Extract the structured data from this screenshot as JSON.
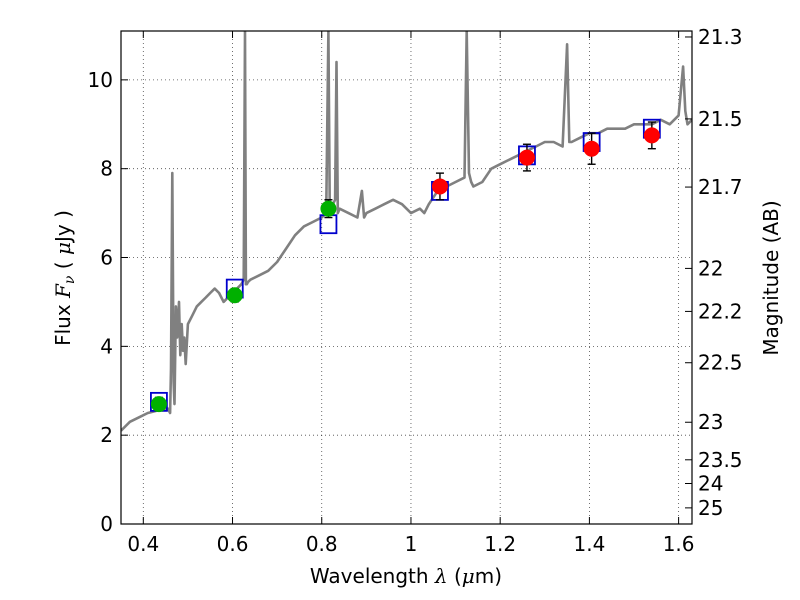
{
  "chart_data": {
    "type": "line",
    "xlabel": "Wavelength  λ (μm)",
    "xlabel_parts": [
      "Wavelength  ",
      "λ",
      " (",
      "μ",
      "m)"
    ],
    "ylabel_parts": [
      "Flux  ",
      "F",
      "ν",
      "  ( ",
      "μ",
      "Jy )"
    ],
    "y2label": "Magnitude (AB)",
    "xlim": [
      0.35,
      1.63
    ],
    "ylim": [
      0,
      11.1
    ],
    "grid": true,
    "x_ticks": [
      0.4,
      0.6,
      0.8,
      1.0,
      1.2,
      1.4,
      1.6
    ],
    "x_tick_labels": [
      "0.4",
      "0.6",
      "0.8",
      "1",
      "1.2",
      "1.4",
      "1.6"
    ],
    "y_ticks": [
      0,
      2,
      4,
      6,
      8,
      10
    ],
    "y_tick_labels": [
      "0",
      "2",
      "4",
      "6",
      "8",
      "10"
    ],
    "mag_ticks": [
      21.3,
      21.5,
      21.7,
      22,
      22.2,
      22.5,
      23,
      23.5,
      24,
      25
    ],
    "mag_tick_labels": [
      "21.3",
      "21.5",
      "21.7",
      "22",
      "22.2",
      "22.5",
      "23",
      "23.5",
      "24",
      "25"
    ],
    "model_spectrum": {
      "name": "model SED",
      "color": "#808080",
      "x": [
        0.35,
        0.37,
        0.39,
        0.41,
        0.43,
        0.45,
        0.455,
        0.46,
        0.462,
        0.465,
        0.468,
        0.47,
        0.473,
        0.476,
        0.48,
        0.483,
        0.486,
        0.489,
        0.492,
        0.495,
        0.5,
        0.51,
        0.52,
        0.53,
        0.54,
        0.55,
        0.56,
        0.57,
        0.58,
        0.6,
        0.61,
        0.615,
        0.62,
        0.625,
        0.628,
        0.63,
        0.632,
        0.635,
        0.64,
        0.66,
        0.68,
        0.7,
        0.72,
        0.74,
        0.76,
        0.78,
        0.8,
        0.81,
        0.815,
        0.818,
        0.82,
        0.822,
        0.825,
        0.83,
        0.833,
        0.836,
        0.84,
        0.86,
        0.88,
        0.89,
        0.895,
        0.9,
        0.92,
        0.94,
        0.96,
        0.98,
        1.0,
        1.02,
        1.03,
        1.04,
        1.06,
        1.08,
        1.1,
        1.12,
        1.125,
        1.13,
        1.135,
        1.14,
        1.16,
        1.18,
        1.2,
        1.22,
        1.24,
        1.26,
        1.28,
        1.3,
        1.32,
        1.34,
        1.35,
        1.355,
        1.36,
        1.38,
        1.4,
        1.42,
        1.44,
        1.46,
        1.48,
        1.5,
        1.52,
        1.54,
        1.56,
        1.58,
        1.6,
        1.61,
        1.615,
        1.62,
        1.63
      ],
      "y": [
        2.1,
        2.3,
        2.4,
        2.5,
        2.55,
        2.6,
        2.6,
        2.5,
        3.5,
        7.9,
        3.2,
        2.7,
        4.9,
        4.2,
        5.0,
        3.8,
        4.5,
        3.9,
        4.2,
        3.6,
        4.5,
        4.7,
        4.9,
        5.0,
        5.1,
        5.2,
        5.3,
        5.2,
        5.0,
        5.2,
        5.3,
        5.35,
        5.4,
        5.5,
        11.1,
        5.4,
        5.4,
        5.45,
        5.5,
        5.6,
        5.7,
        5.9,
        6.2,
        6.5,
        6.7,
        6.8,
        6.9,
        7.0,
        11.1,
        7.0,
        7.0,
        7.1,
        7.2,
        7.3,
        10.4,
        7.0,
        7.1,
        7.0,
        6.9,
        7.5,
        6.9,
        7.0,
        7.1,
        7.2,
        7.3,
        7.2,
        7.0,
        7.1,
        7.0,
        7.2,
        7.5,
        7.6,
        7.7,
        7.8,
        11.1,
        7.9,
        7.7,
        7.6,
        7.7,
        8.0,
        8.1,
        8.2,
        8.3,
        8.4,
        8.5,
        8.6,
        8.6,
        8.5,
        10.8,
        8.6,
        8.6,
        8.7,
        8.8,
        8.8,
        8.9,
        8.9,
        8.9,
        9.0,
        9.0,
        9.0,
        9.1,
        9.0,
        9.2,
        10.3,
        9.3,
        9.0,
        9.1
      ]
    },
    "series": [
      {
        "name": "green photometry",
        "color": "#00b000",
        "x": [
          0.435,
          0.605,
          0.815
        ],
        "values": [
          2.7,
          5.15,
          7.1
        ],
        "err": [
          0.15,
          0.15,
          0.2
        ]
      },
      {
        "name": "red photometry",
        "color": "#ff0000",
        "x": [
          1.065,
          1.26,
          1.405,
          1.54
        ],
        "values": [
          7.6,
          8.25,
          8.45,
          8.75
        ],
        "err": [
          0.3,
          0.3,
          0.35,
          0.3
        ]
      },
      {
        "name": "model fluxes",
        "color": "#0000cc",
        "x": [
          0.435,
          0.605,
          0.815,
          1.065,
          1.26,
          1.405,
          1.54
        ],
        "values": [
          2.75,
          5.3,
          6.75,
          7.5,
          8.3,
          8.6,
          8.9
        ]
      }
    ]
  }
}
